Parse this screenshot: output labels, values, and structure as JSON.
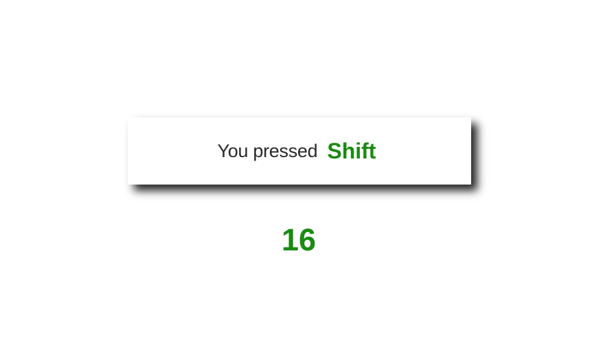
{
  "key_display": {
    "prefix": "You pressed",
    "key_name": "Shift",
    "key_code": "16"
  },
  "colors": {
    "accent": "#1a8a12",
    "text": "#2a2a2a",
    "background": "#ffffff"
  }
}
